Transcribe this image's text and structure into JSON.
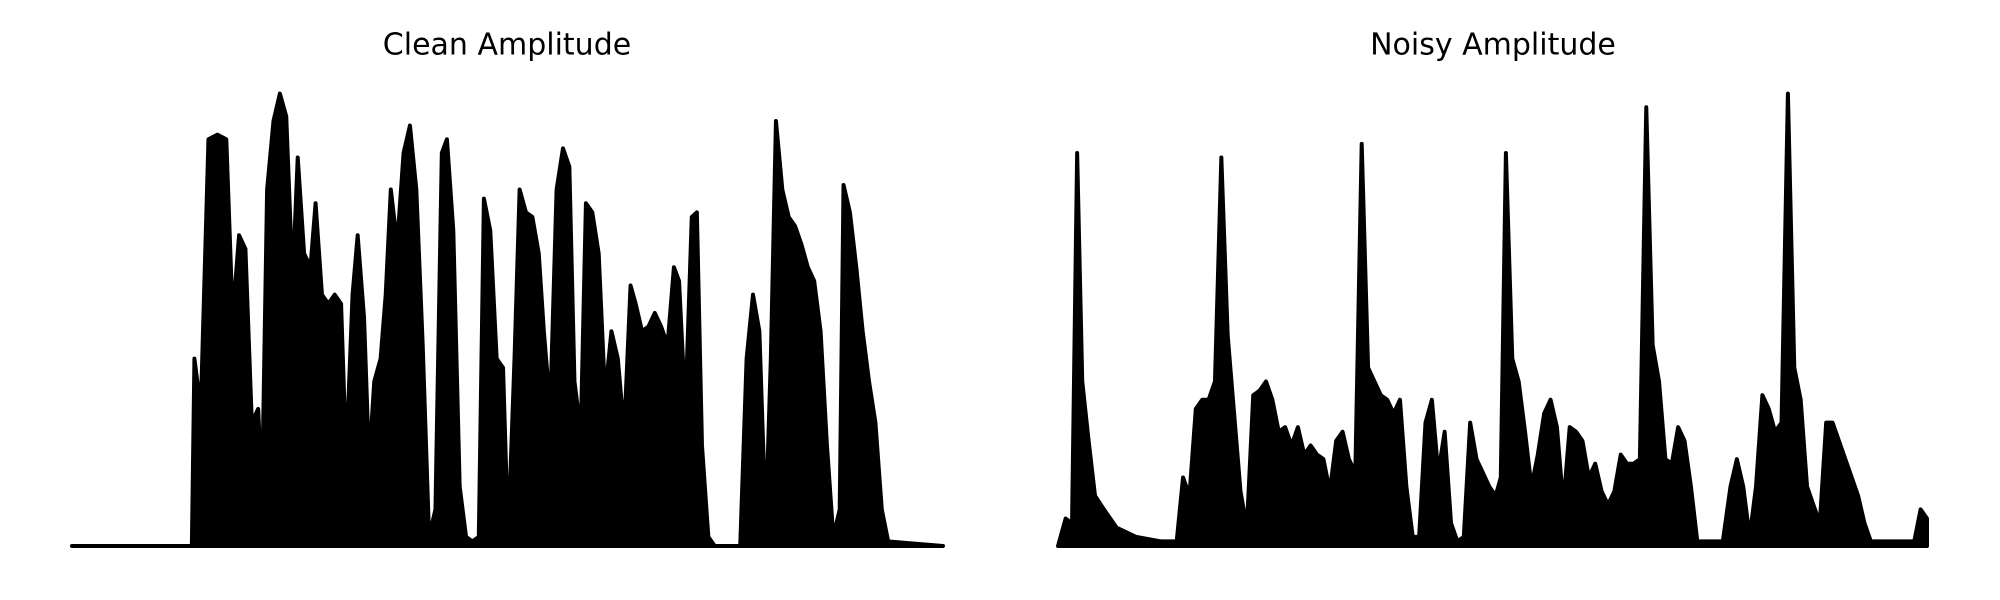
{
  "chart_data": [
    {
      "type": "area",
      "title": "Clean Amplitude",
      "color": "#000000",
      "xlim": [
        0,
        683
      ],
      "ylim": [
        0,
        1
      ],
      "x": [
        0,
        94,
        96,
        101,
        107,
        114,
        121,
        126,
        131,
        136,
        141,
        146,
        149,
        153,
        158,
        163,
        168,
        173,
        177,
        182,
        187,
        191,
        196,
        201,
        206,
        211,
        215,
        220,
        224,
        229,
        233,
        237,
        242,
        246,
        250,
        255,
        260,
        265,
        270,
        275,
        280,
        285,
        290,
        294,
        299,
        304,
        309,
        314,
        319,
        323,
        328,
        333,
        338,
        342,
        347,
        351,
        356,
        361,
        366,
        370,
        375,
        380,
        385,
        390,
        394,
        399,
        403,
        408,
        413,
        418,
        423,
        428,
        433,
        438,
        442,
        447,
        452,
        457,
        462,
        467,
        472,
        476,
        481,
        486,
        490,
        494,
        499,
        504,
        524,
        529,
        534,
        539,
        544,
        548,
        552,
        557,
        562,
        567,
        572,
        577,
        582,
        587,
        592,
        597,
        602,
        605,
        610,
        615,
        620,
        625,
        630,
        635,
        640,
        683
      ],
      "values": [
        0,
        0,
        0.41,
        0.3,
        0.89,
        0.9,
        0.89,
        0.5,
        0.68,
        0.65,
        0.27,
        0.3,
        0.11,
        0.78,
        0.93,
        0.99,
        0.94,
        0.58,
        0.85,
        0.64,
        0.61,
        0.75,
        0.55,
        0.53,
        0.55,
        0.53,
        0.19,
        0.55,
        0.68,
        0.5,
        0.18,
        0.36,
        0.41,
        0.55,
        0.78,
        0.66,
        0.86,
        0.92,
        0.78,
        0.44,
        0.02,
        0.08,
        0.86,
        0.89,
        0.69,
        0.13,
        0.02,
        0.01,
        0.02,
        0.76,
        0.69,
        0.41,
        0.39,
        0.02,
        0.41,
        0.78,
        0.73,
        0.72,
        0.64,
        0.47,
        0.3,
        0.78,
        0.87,
        0.83,
        0.36,
        0.25,
        0.75,
        0.73,
        0.64,
        0.33,
        0.47,
        0.41,
        0.25,
        0.57,
        0.53,
        0.47,
        0.48,
        0.51,
        0.48,
        0.44,
        0.61,
        0.58,
        0.3,
        0.72,
        0.73,
        0.22,
        0.02,
        0,
        0,
        0.41,
        0.55,
        0.47,
        0.05,
        0.41,
        0.93,
        0.78,
        0.72,
        0.7,
        0.66,
        0.61,
        0.58,
        0.47,
        0.22,
        0.02,
        0.08,
        0.79,
        0.73,
        0.61,
        0.47,
        0.36,
        0.27,
        0.08,
        0.01,
        0
      ]
    },
    {
      "type": "area",
      "title": "Noisy Amplitude",
      "color": "#000000",
      "xlim": [
        0,
        681
      ],
      "ylim": [
        0,
        1
      ],
      "x": [
        0,
        6,
        11,
        15,
        19,
        24,
        29,
        36,
        46,
        61,
        81,
        93,
        98,
        103,
        108,
        113,
        118,
        123,
        128,
        133,
        138,
        143,
        148,
        153,
        158,
        163,
        168,
        173,
        178,
        183,
        188,
        193,
        198,
        203,
        208,
        213,
        218,
        223,
        228,
        233,
        238,
        243,
        248,
        253,
        258,
        263,
        268,
        273,
        278,
        283,
        288,
        293,
        298,
        303,
        308,
        313,
        318,
        323,
        328,
        333,
        338,
        343,
        347,
        351,
        356,
        361,
        366,
        371,
        376,
        381,
        386,
        391,
        396,
        401,
        406,
        411,
        416,
        421,
        426,
        431,
        436,
        441,
        446,
        451,
        456,
        461,
        466,
        471,
        476,
        481,
        486,
        491,
        496,
        501,
        511,
        521,
        527,
        532,
        537,
        542,
        547,
        552,
        557,
        562,
        567,
        572,
        577,
        582,
        587,
        592,
        597,
        602,
        607,
        612,
        617,
        622,
        627,
        632,
        637,
        651,
        671,
        676,
        681
      ],
      "values": [
        0,
        0.06,
        0.05,
        0.86,
        0.36,
        0.23,
        0.11,
        0.08,
        0.04,
        0.02,
        0.01,
        0.01,
        0.15,
        0.11,
        0.3,
        0.32,
        0.32,
        0.36,
        0.85,
        0.46,
        0.29,
        0.12,
        0.04,
        0.33,
        0.34,
        0.36,
        0.32,
        0.25,
        0.26,
        0.22,
        0.26,
        0.2,
        0.22,
        0.2,
        0.19,
        0.12,
        0.23,
        0.25,
        0.19,
        0.16,
        0.88,
        0.39,
        0.36,
        0.33,
        0.32,
        0.29,
        0.32,
        0.13,
        0.02,
        0.02,
        0.27,
        0.32,
        0.16,
        0.25,
        0.05,
        0.01,
        0.02,
        0.27,
        0.19,
        0.16,
        0.13,
        0.11,
        0.15,
        0.86,
        0.41,
        0.36,
        0.25,
        0.13,
        0.2,
        0.29,
        0.32,
        0.26,
        0.09,
        0.26,
        0.25,
        0.23,
        0.15,
        0.18,
        0.12,
        0.09,
        0.12,
        0.2,
        0.18,
        0.18,
        0.19,
        0.96,
        0.44,
        0.36,
        0.19,
        0.18,
        0.26,
        0.23,
        0.13,
        0.01,
        0.01,
        0.01,
        0.13,
        0.19,
        0.13,
        0.02,
        0.13,
        0.33,
        0.3,
        0.25,
        0.27,
        0.99,
        0.39,
        0.32,
        0.13,
        0.09,
        0.05,
        0.27,
        0.27,
        0.23,
        0.19,
        0.15,
        0.11,
        0.05,
        0.01,
        0.01,
        0.01,
        0.08,
        0.06
      ]
    }
  ]
}
